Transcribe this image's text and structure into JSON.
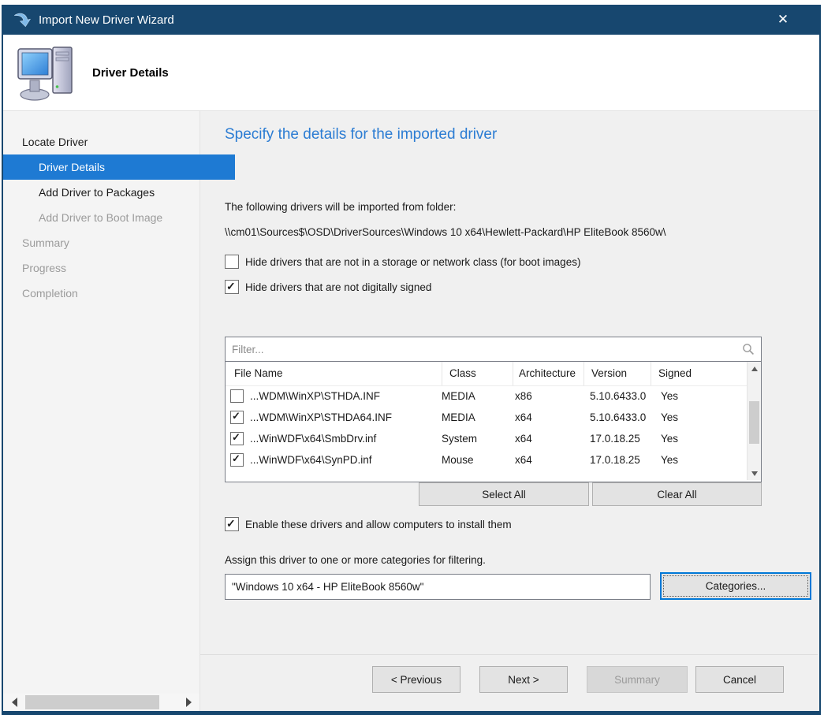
{
  "colors": {
    "titlebar": "#17476F",
    "active_step": "#1E7AD3",
    "heading": "#2B7CD3",
    "content_bg": "#F0F0F0"
  },
  "window": {
    "title": "Import New Driver Wizard",
    "close_glyph": "✕"
  },
  "header": {
    "title": "Driver Details"
  },
  "icons": {
    "app": "wizard-down-arrow",
    "header": "computer-monitor-tower",
    "filter": "magnifier",
    "check": "✓"
  },
  "sidebar": {
    "items": [
      {
        "label": "Locate Driver",
        "level": 0,
        "state": "enabled"
      },
      {
        "label": "Driver Details",
        "level": 1,
        "state": "active"
      },
      {
        "label": "Add Driver to Packages",
        "level": 1,
        "state": "enabled"
      },
      {
        "label": "Add Driver to Boot Image",
        "level": 1,
        "state": "disabled"
      },
      {
        "label": "Summary",
        "level": 0,
        "state": "disabled"
      },
      {
        "label": "Progress",
        "level": 0,
        "state": "disabled"
      },
      {
        "label": "Completion",
        "level": 0,
        "state": "disabled"
      }
    ]
  },
  "main": {
    "heading": "Specify the details for the imported driver",
    "intro": "The following drivers will be imported from folder:",
    "path": "\\\\cm01\\Sources$\\OSD\\DriverSources\\Windows 10 x64\\Hewlett-Packard\\HP EliteBook 8560w\\",
    "checkboxes": [
      {
        "checked": false,
        "label": "Hide drivers that are not in a storage or network class (for boot images)"
      },
      {
        "checked": true,
        "label": "Hide drivers that are not digitally signed"
      }
    ],
    "filter": {
      "placeholder": "Filter..."
    },
    "table": {
      "columns": [
        "File Name",
        "Class",
        "Architecture",
        "Version",
        "Signed"
      ],
      "rows": [
        {
          "checked": false,
          "file": "...WDM\\WinXP\\STHDA.INF",
          "class": "MEDIA",
          "arch": "x86",
          "version": "5.10.6433.0",
          "signed": "Yes"
        },
        {
          "checked": true,
          "file": "...WDM\\WinXP\\STHDA64.INF",
          "class": "MEDIA",
          "arch": "x64",
          "version": "5.10.6433.0",
          "signed": "Yes"
        },
        {
          "checked": true,
          "file": "...WinWDF\\x64\\SmbDrv.inf",
          "class": "System",
          "arch": "x64",
          "version": "17.0.18.25",
          "signed": "Yes"
        },
        {
          "checked": true,
          "file": "...WinWDF\\x64\\SynPD.inf",
          "class": "Mouse",
          "arch": "x64",
          "version": "17.0.18.25",
          "signed": "Yes"
        }
      ]
    },
    "select_all": "Select All",
    "clear_all": "Clear All",
    "enable": {
      "checked": true,
      "label": "Enable these drivers and allow computers to install them"
    },
    "categories": {
      "label": "Assign this driver to one or more categories for filtering.",
      "value": "\"Windows 10 x64 - HP EliteBook 8560w\"",
      "button": "Categories..."
    }
  },
  "footer": {
    "previous": "< Previous",
    "next": "Next >",
    "summary": "Summary",
    "cancel": "Cancel"
  }
}
